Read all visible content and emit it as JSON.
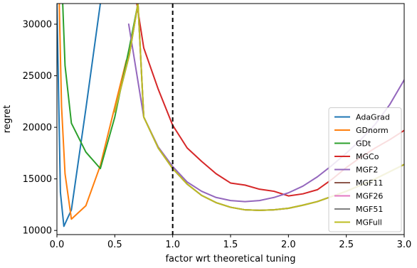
{
  "chart_data": {
    "type": "line",
    "title": "",
    "xlabel": "factor wrt theoretical tuning",
    "ylabel": "regret",
    "xlim": [
      0,
      3.0
    ],
    "ylim": [
      9600,
      32000
    ],
    "grid": false,
    "legend_position": "bottom-right",
    "x_ticks": [
      0.0,
      0.5,
      1.0,
      1.5,
      2.0,
      2.5,
      3.0
    ],
    "x_tick_labels": [
      "0.0",
      "0.5",
      "1.0",
      "1.5",
      "2.0",
      "2.5",
      "3.0"
    ],
    "y_ticks": [
      10000,
      15000,
      20000,
      25000,
      30000
    ],
    "y_tick_labels": [
      "10000",
      "15000",
      "20000",
      "25000",
      "30000"
    ],
    "reference_line": {
      "x": 1.0,
      "style": "dashed",
      "color": "#000000"
    },
    "series": [
      {
        "name": "AdaGrad",
        "color": "#1f77b4",
        "x": [
          0.0,
          0.03,
          0.06,
          0.125,
          0.25,
          0.375
        ],
        "y": [
          32000,
          13700,
          10400,
          12000,
          21800,
          32000
        ]
      },
      {
        "name": "GDnorm",
        "color": "#ff7f0e",
        "x": [
          0.02,
          0.04,
          0.07,
          0.125,
          0.25,
          0.375,
          0.5,
          0.6
        ],
        "y": [
          32000,
          22000,
          15500,
          11100,
          12400,
          16300,
          22000,
          26500
        ]
      },
      {
        "name": "GDt",
        "color": "#2ca02c",
        "x": [
          0.05,
          0.06,
          0.07,
          0.125,
          0.25,
          0.375,
          0.5,
          0.625,
          0.7
        ],
        "y": [
          32000,
          29000,
          26000,
          20400,
          17600,
          16000,
          21000,
          27700,
          32000
        ]
      },
      {
        "name": "MGCo",
        "color": "#d62728",
        "x": [
          0.69,
          0.75,
          0.875,
          1.0,
          1.125,
          1.25,
          1.375,
          1.5,
          1.625,
          1.75,
          1.875,
          2.0,
          2.125,
          2.25,
          2.375,
          2.5,
          2.625,
          2.75,
          2.875,
          3.0
        ],
        "y": [
          32000,
          27700,
          23700,
          20200,
          18000,
          16700,
          15500,
          14600,
          14400,
          14000,
          13800,
          13350,
          13550,
          13950,
          14950,
          16100,
          17100,
          18000,
          18800,
          19700
        ]
      },
      {
        "name": "MGF2",
        "color": "#9467bd",
        "x": [
          0.62,
          0.75,
          0.875,
          1.0,
          1.125,
          1.25,
          1.375,
          1.5,
          1.625,
          1.75,
          1.875,
          2.0,
          2.125,
          2.25,
          2.375,
          2.5,
          2.625,
          2.75,
          2.875,
          3.0
        ],
        "y": [
          30000,
          21000,
          18100,
          16200,
          14700,
          13800,
          13200,
          12900,
          12800,
          12900,
          13200,
          13650,
          14300,
          15200,
          16300,
          17500,
          18800,
          20300,
          22200,
          24600
        ]
      },
      {
        "name": "MGF11",
        "color": "#8c564b",
        "x": [
          0.5,
          0.625,
          0.7,
          0.75,
          0.875,
          1.0,
          1.125,
          1.25,
          1.375,
          1.5,
          1.625,
          1.75,
          1.875,
          2.0,
          2.125,
          2.25,
          2.375,
          2.5,
          2.625,
          2.75,
          2.875,
          3.0
        ],
        "y": [
          21500,
          27000,
          32000,
          21000,
          18000,
          16000,
          14500,
          13400,
          12700,
          12250,
          12000,
          11950,
          12000,
          12150,
          12450,
          12800,
          13300,
          13800,
          14400,
          15000,
          15700,
          16400
        ]
      },
      {
        "name": "MGF26",
        "color": "#e377c2",
        "x": [
          0.5,
          0.625,
          0.7,
          0.75,
          0.875,
          1.0,
          1.125,
          1.25,
          1.375,
          1.5,
          1.625,
          1.75,
          1.875,
          2.0,
          2.125,
          2.25,
          2.375,
          2.5,
          2.625,
          2.75,
          2.875,
          3.0
        ],
        "y": [
          21500,
          27000,
          32000,
          21000,
          18000,
          16000,
          14500,
          13400,
          12700,
          12250,
          12000,
          11950,
          12000,
          12150,
          12450,
          12800,
          13300,
          13800,
          14400,
          15000,
          15700,
          16400
        ]
      },
      {
        "name": "MGF51",
        "color": "#7f7f7f",
        "x": [
          0.5,
          0.625,
          0.7,
          0.75,
          0.875,
          1.0,
          1.125,
          1.25,
          1.375,
          1.5,
          1.625,
          1.75,
          1.875,
          2.0,
          2.125,
          2.25,
          2.375,
          2.5,
          2.625,
          2.75,
          2.875,
          3.0
        ],
        "y": [
          21500,
          27000,
          32000,
          21000,
          18000,
          16000,
          14500,
          13400,
          12700,
          12250,
          12000,
          11950,
          12000,
          12150,
          12450,
          12800,
          13300,
          13800,
          14400,
          15000,
          15700,
          16400
        ]
      },
      {
        "name": "MGFull",
        "color": "#bcbd22",
        "x": [
          0.5,
          0.625,
          0.7,
          0.75,
          0.875,
          1.0,
          1.125,
          1.25,
          1.375,
          1.5,
          1.625,
          1.75,
          1.875,
          2.0,
          2.125,
          2.25,
          2.375,
          2.5,
          2.625,
          2.75,
          2.875,
          3.0
        ],
        "y": [
          21500,
          27000,
          32000,
          21000,
          18000,
          16000,
          14500,
          13400,
          12700,
          12250,
          12000,
          11950,
          12000,
          12150,
          12450,
          12800,
          13300,
          13800,
          14400,
          15000,
          15700,
          16400
        ]
      }
    ]
  }
}
